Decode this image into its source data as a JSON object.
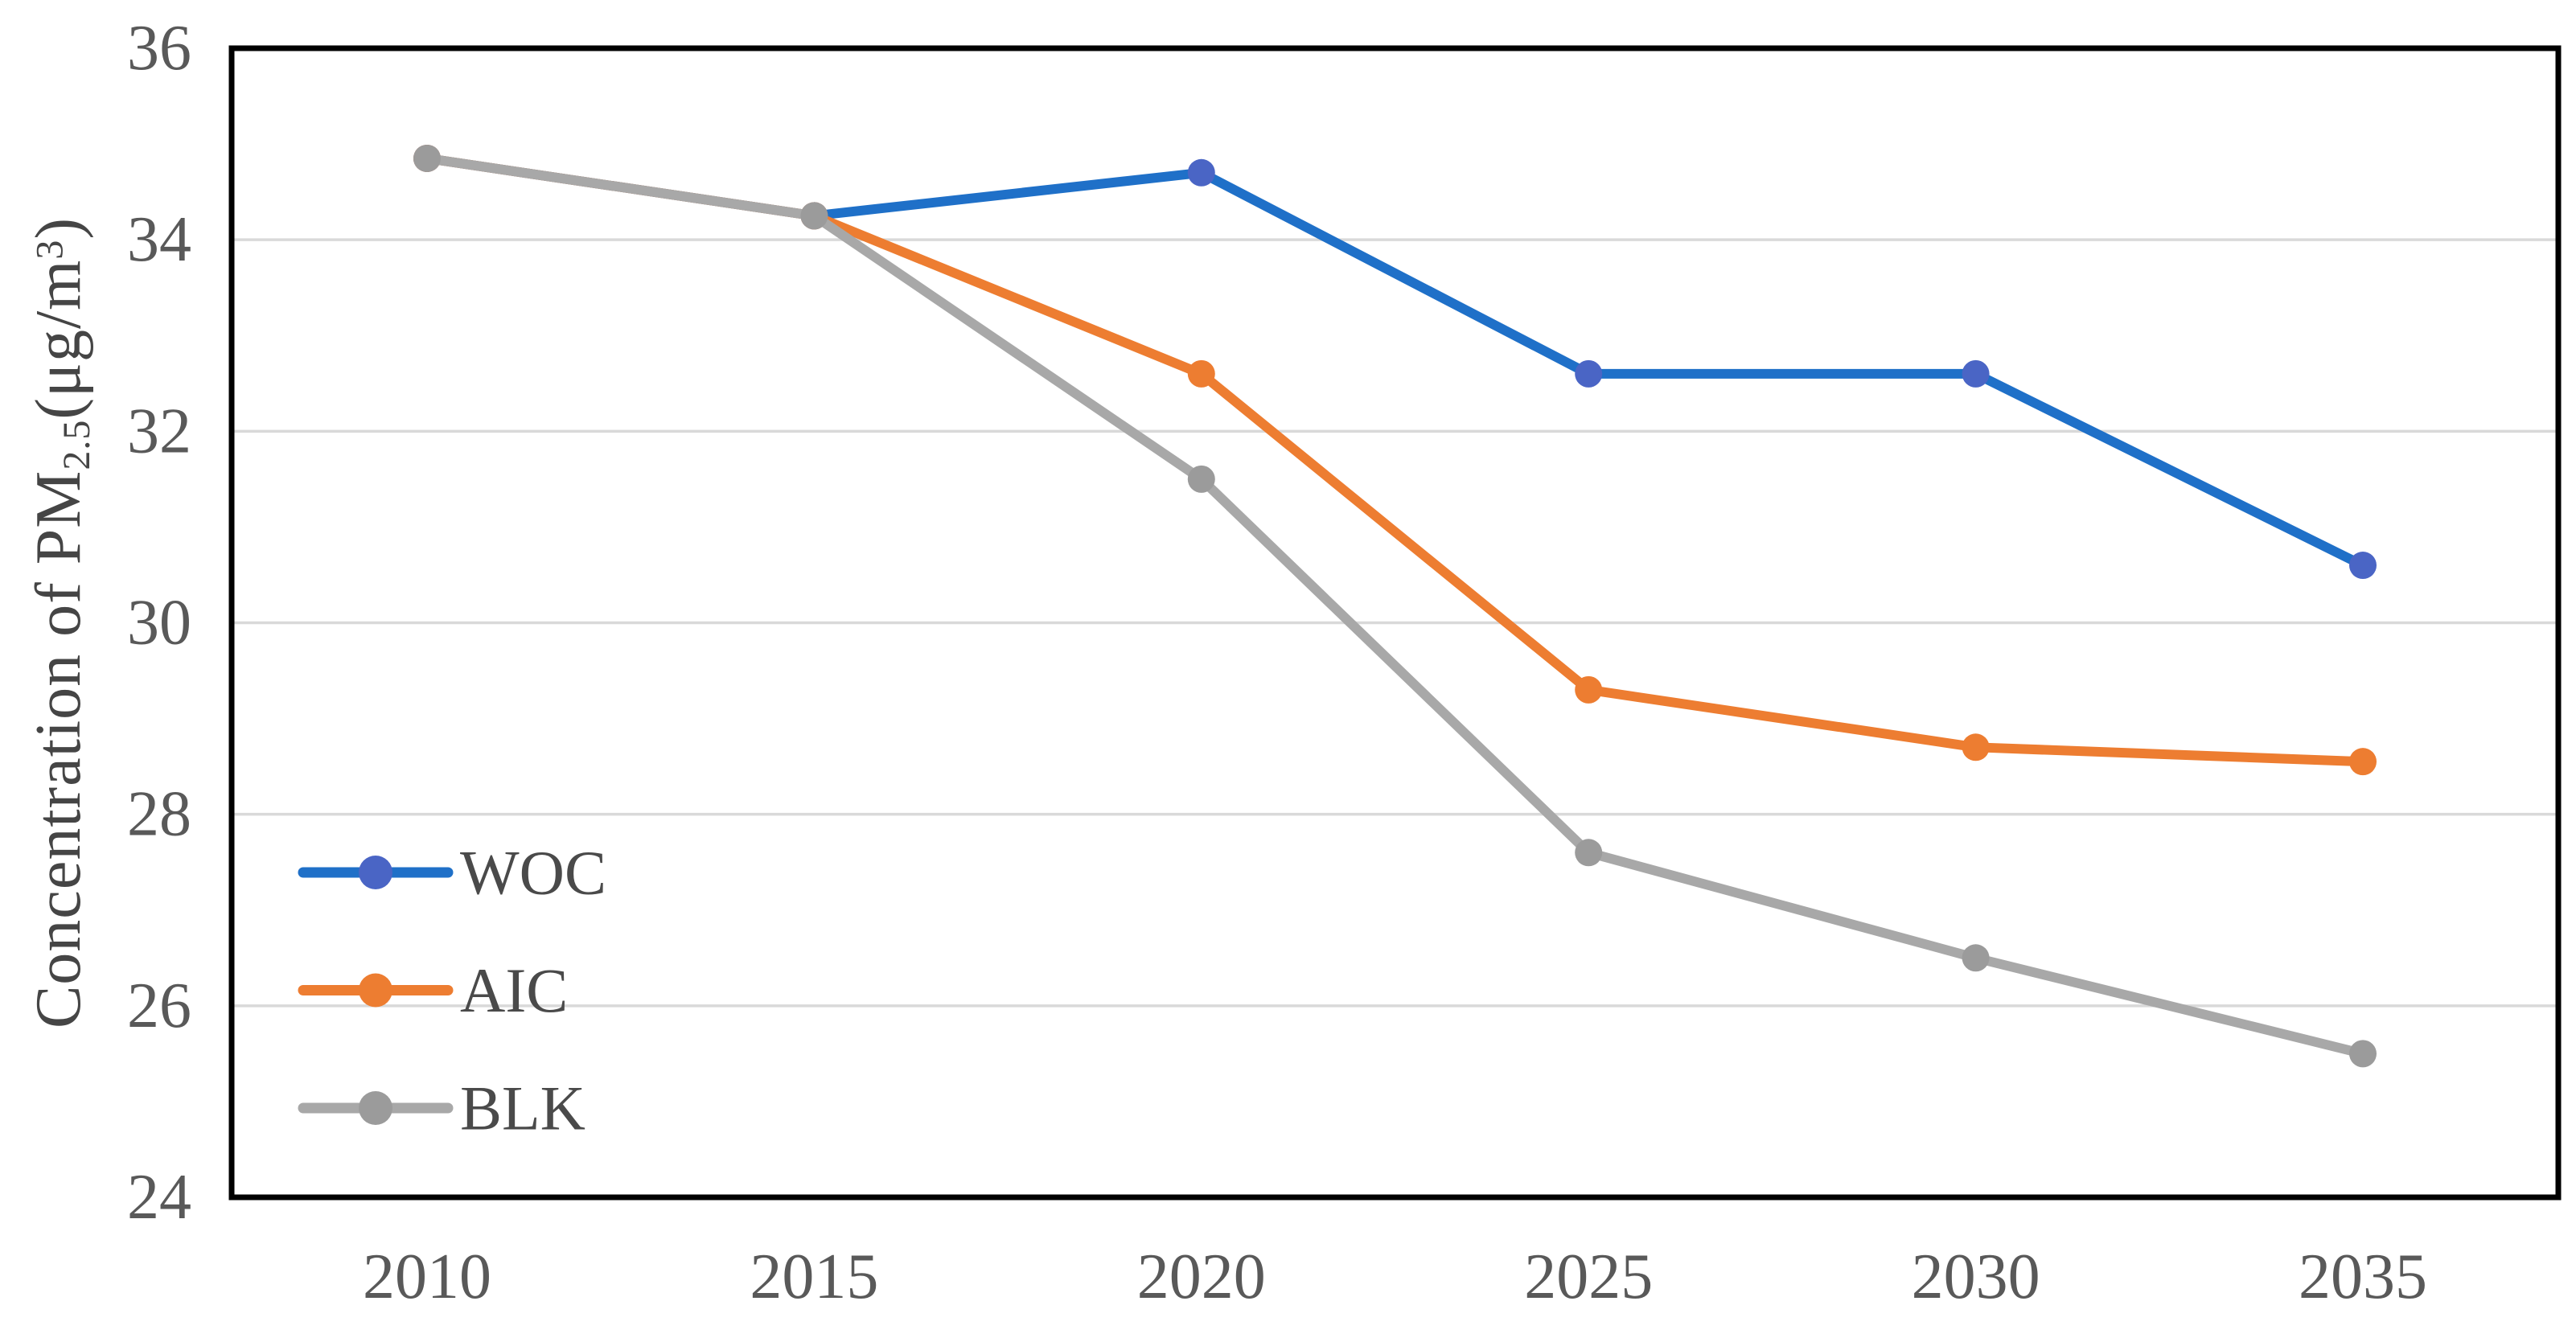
{
  "chart_data": {
    "type": "line",
    "categories": [
      "2010",
      "2015",
      "2020",
      "2025",
      "2030",
      "2035"
    ],
    "series": [
      {
        "name": "WOC",
        "color": "#1F70C8",
        "marker_color": "#4A65C5",
        "values": [
          34.85,
          34.25,
          34.7,
          32.6,
          32.6,
          30.6
        ]
      },
      {
        "name": "AIC",
        "color": "#ED7D31",
        "marker_color": "#ED7D31",
        "values": [
          34.85,
          34.25,
          32.6,
          29.3,
          28.7,
          28.55
        ]
      },
      {
        "name": "BLK",
        "color": "#A8A8A8",
        "marker_color": "#9B9B9B",
        "values": [
          34.85,
          34.25,
          31.5,
          27.6,
          26.5,
          25.5
        ]
      }
    ],
    "title": "",
    "xlabel": "",
    "ylabel": "Concentration of PM2.5(μg/m3)",
    "ylabel_parts": {
      "prefix": "Concentration of PM",
      "sub": "2.5",
      "mid": "(μg/m",
      "sup": "3",
      "suffix": ")"
    },
    "ylim": [
      24,
      36
    ],
    "y_ticks": [
      36,
      34,
      32,
      30,
      28,
      26,
      24
    ],
    "grid": "horizontal-only",
    "legend_position": "inside-left",
    "legend_labels": [
      "WOC",
      "AIC",
      "BLK"
    ],
    "colors": {
      "gridline": "#D9D9D9",
      "plot_border": "#000000",
      "tick_label": "#595959",
      "legend_label": "#4A4A4A",
      "background": "#FFFFFF"
    }
  }
}
